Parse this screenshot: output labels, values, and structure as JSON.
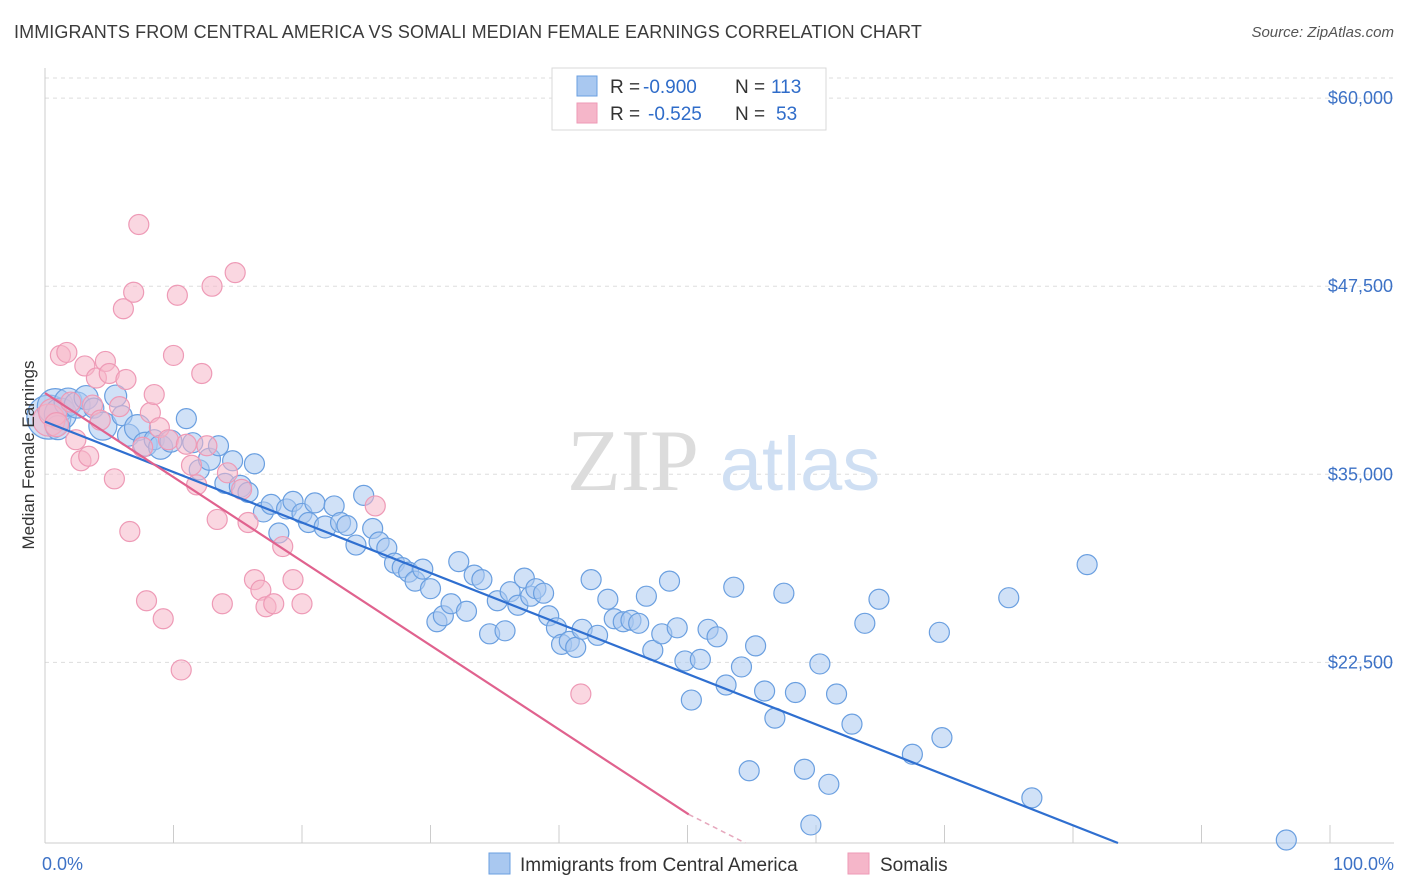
{
  "header": {
    "title": "IMMIGRANTS FROM CENTRAL AMERICA VS SOMALI MEDIAN FEMALE EARNINGS CORRELATION CHART",
    "source": "Source: ZipAtlas.com"
  },
  "watermark": {
    "zip": "ZIP",
    "atlas": "atlas"
  },
  "legend_top": {
    "rows": [
      {
        "r_label": "R =",
        "r_value": "-0.900",
        "n_label": "N =",
        "n_value": "113",
        "color": "#a9c8f0"
      },
      {
        "r_label": "R =",
        "r_value": "-0.525",
        "n_label": "N =",
        "n_value": "53",
        "color": "#f5b6c9"
      }
    ]
  },
  "chart_data": {
    "type": "scatter",
    "title": "IMMIGRANTS FROM CENTRAL AMERICA VS SOMALI MEDIAN FEMALE EARNINGS CORRELATION CHART",
    "ylabel": "Median Female Earnings",
    "xlim": [
      0,
      100
    ],
    "ylim": [
      10500,
      62000
    ],
    "x_tick_labels": {
      "left": "0.0%",
      "right": "100.0%"
    },
    "y_ticks": [
      {
        "value": 22500,
        "label": "$22,500"
      },
      {
        "value": 35000,
        "label": "$35,000"
      },
      {
        "value": 47500,
        "label": "$47,500"
      },
      {
        "value": 60000,
        "label": "$60,000"
      }
    ],
    "grid": true,
    "legend_position": "top-center",
    "series": [
      {
        "name": "Immigrants from Central America",
        "color": "#6a9fe0",
        "fill": "#a9c8f0",
        "line_color": "#2f6fd0",
        "trend": {
          "x0": 0,
          "y0": 38500,
          "x1": 83.5,
          "y1": 10500
        },
        "points": [
          [
            0.3,
            38800,
            22
          ],
          [
            0.8,
            39500,
            18
          ],
          [
            1.2,
            39000,
            16
          ],
          [
            1.8,
            39800,
            14
          ],
          [
            2.5,
            39600,
            13
          ],
          [
            3.2,
            40100,
            12
          ],
          [
            3.8,
            39400,
            10
          ],
          [
            4.5,
            38200,
            14
          ],
          [
            5.5,
            40200,
            11
          ],
          [
            6.0,
            38900,
            10
          ],
          [
            6.5,
            37600,
            11
          ],
          [
            7.2,
            38100,
            13
          ],
          [
            7.8,
            37000,
            12
          ],
          [
            8.5,
            37300,
            10
          ],
          [
            9.0,
            36800,
            12
          ],
          [
            9.8,
            37200,
            11
          ],
          [
            11.0,
            38700,
            10
          ],
          [
            11.5,
            37100,
            10
          ],
          [
            12.0,
            35300,
            10
          ],
          [
            12.8,
            36000,
            11
          ],
          [
            13.5,
            36900,
            10
          ],
          [
            14.0,
            34400,
            10
          ],
          [
            14.6,
            35900,
            10
          ],
          [
            15.2,
            34200,
            11
          ],
          [
            15.8,
            33800,
            10
          ],
          [
            16.3,
            35700,
            10
          ],
          [
            17.0,
            32500,
            10
          ],
          [
            17.6,
            33000,
            10
          ],
          [
            18.2,
            31100,
            10
          ],
          [
            18.8,
            32700,
            10
          ],
          [
            19.3,
            33200,
            10
          ],
          [
            20.0,
            32400,
            10
          ],
          [
            20.5,
            31800,
            10
          ],
          [
            21.0,
            33100,
            10
          ],
          [
            21.8,
            31500,
            11
          ],
          [
            22.5,
            32900,
            10
          ],
          [
            23.0,
            31800,
            10
          ],
          [
            23.5,
            31600,
            10
          ],
          [
            24.2,
            30300,
            10
          ],
          [
            24.8,
            33600,
            10
          ],
          [
            25.5,
            31400,
            10
          ],
          [
            26.0,
            30500,
            10
          ],
          [
            26.6,
            30100,
            10
          ],
          [
            27.2,
            29100,
            10
          ],
          [
            27.8,
            28800,
            10
          ],
          [
            28.3,
            28500,
            10
          ],
          [
            28.8,
            27900,
            10
          ],
          [
            29.4,
            28700,
            10
          ],
          [
            30.0,
            27400,
            10
          ],
          [
            30.5,
            25200,
            10
          ],
          [
            31.0,
            25600,
            10
          ],
          [
            31.6,
            26400,
            10
          ],
          [
            32.2,
            29200,
            10
          ],
          [
            32.8,
            25900,
            10
          ],
          [
            33.4,
            28300,
            10
          ],
          [
            34.0,
            28000,
            10
          ],
          [
            34.6,
            24400,
            10
          ],
          [
            35.2,
            26600,
            10
          ],
          [
            35.8,
            24600,
            10
          ],
          [
            36.2,
            27200,
            10
          ],
          [
            36.8,
            26300,
            10
          ],
          [
            37.3,
            28100,
            10
          ],
          [
            37.8,
            26900,
            10
          ],
          [
            38.2,
            27400,
            10
          ],
          [
            38.8,
            27100,
            10
          ],
          [
            39.2,
            25600,
            10
          ],
          [
            39.8,
            24800,
            10
          ],
          [
            40.2,
            23700,
            10
          ],
          [
            40.8,
            23900,
            10
          ],
          [
            41.3,
            23500,
            10
          ],
          [
            41.8,
            24700,
            10
          ],
          [
            42.5,
            28000,
            10
          ],
          [
            43.0,
            24300,
            10
          ],
          [
            43.8,
            26700,
            10
          ],
          [
            44.3,
            25400,
            10
          ],
          [
            45.0,
            25200,
            10
          ],
          [
            45.6,
            25300,
            10
          ],
          [
            46.2,
            25100,
            10
          ],
          [
            46.8,
            26900,
            10
          ],
          [
            47.3,
            23300,
            10
          ],
          [
            48.0,
            24400,
            10
          ],
          [
            48.6,
            27900,
            10
          ],
          [
            49.2,
            24800,
            10
          ],
          [
            49.8,
            22600,
            10
          ],
          [
            50.3,
            20000,
            10
          ],
          [
            51.0,
            22700,
            10
          ],
          [
            51.6,
            24700,
            10
          ],
          [
            52.3,
            24200,
            10
          ],
          [
            53.0,
            21000,
            10
          ],
          [
            53.6,
            27500,
            10
          ],
          [
            54.2,
            22200,
            10
          ],
          [
            54.8,
            15300,
            10
          ],
          [
            55.3,
            23600,
            10
          ],
          [
            56.0,
            20600,
            10
          ],
          [
            56.8,
            18800,
            10
          ],
          [
            57.5,
            27100,
            10
          ],
          [
            58.4,
            20500,
            10
          ],
          [
            59.1,
            15400,
            10
          ],
          [
            59.6,
            11700,
            10
          ],
          [
            60.3,
            22400,
            10
          ],
          [
            61.0,
            14400,
            10
          ],
          [
            61.6,
            20400,
            10
          ],
          [
            62.8,
            18400,
            10
          ],
          [
            63.8,
            25100,
            10
          ],
          [
            64.9,
            26700,
            10
          ],
          [
            67.5,
            16400,
            10
          ],
          [
            69.6,
            24500,
            10
          ],
          [
            69.8,
            17500,
            10
          ],
          [
            75.0,
            26800,
            10
          ],
          [
            76.8,
            13500,
            10
          ],
          [
            81.1,
            29000,
            10
          ],
          [
            96.6,
            10700,
            10
          ],
          [
            1.0,
            38100,
            12
          ]
        ]
      },
      {
        "name": "Somalis",
        "color": "#ee9ab6",
        "fill": "#f5b6c9",
        "line_color": "#e0628e",
        "trend": {
          "x0": 0,
          "y0": 40400,
          "x1": 50.1,
          "y1": 12400
        },
        "dash": {
          "x0": 50.1,
          "y0": 12400,
          "x1": 54.5,
          "y1": 10500
        },
        "points": [
          [
            0.3,
            38600,
            16
          ],
          [
            0.6,
            39100,
            14
          ],
          [
            0.9,
            38300,
            12
          ],
          [
            1.2,
            42900,
            10
          ],
          [
            1.7,
            43100,
            10
          ],
          [
            2.0,
            39800,
            10
          ],
          [
            2.4,
            37300,
            10
          ],
          [
            2.8,
            35900,
            10
          ],
          [
            3.1,
            42200,
            10
          ],
          [
            3.4,
            36200,
            10
          ],
          [
            3.7,
            39600,
            10
          ],
          [
            4.0,
            41400,
            10
          ],
          [
            4.3,
            38600,
            10
          ],
          [
            4.7,
            42500,
            10
          ],
          [
            5.0,
            41700,
            10
          ],
          [
            5.4,
            34700,
            10
          ],
          [
            5.8,
            39500,
            10
          ],
          [
            6.1,
            46000,
            10
          ],
          [
            6.3,
            41300,
            10
          ],
          [
            6.6,
            31200,
            10
          ],
          [
            6.9,
            47100,
            10
          ],
          [
            7.3,
            51600,
            10
          ],
          [
            7.6,
            36800,
            10
          ],
          [
            7.9,
            26600,
            10
          ],
          [
            8.2,
            39100,
            10
          ],
          [
            8.5,
            40300,
            10
          ],
          [
            8.9,
            38100,
            10
          ],
          [
            9.2,
            25400,
            10
          ],
          [
            9.6,
            37300,
            10
          ],
          [
            10.0,
            42900,
            10
          ],
          [
            10.3,
            46900,
            10
          ],
          [
            10.6,
            22000,
            10
          ],
          [
            11.0,
            37000,
            10
          ],
          [
            11.4,
            35600,
            10
          ],
          [
            11.8,
            34300,
            10
          ],
          [
            12.2,
            41700,
            10
          ],
          [
            12.6,
            36900,
            10
          ],
          [
            13.0,
            47500,
            10
          ],
          [
            13.4,
            32000,
            10
          ],
          [
            13.8,
            26400,
            10
          ],
          [
            14.2,
            35100,
            10
          ],
          [
            14.8,
            48400,
            10
          ],
          [
            15.3,
            34000,
            10
          ],
          [
            15.8,
            31800,
            10
          ],
          [
            16.3,
            28000,
            10
          ],
          [
            16.8,
            27300,
            10
          ],
          [
            17.2,
            26200,
            10
          ],
          [
            17.8,
            26400,
            10
          ],
          [
            18.5,
            30200,
            10
          ],
          [
            19.3,
            28000,
            10
          ],
          [
            20.0,
            26400,
            10
          ],
          [
            25.7,
            32900,
            10
          ],
          [
            41.7,
            20400,
            10
          ]
        ]
      }
    ]
  },
  "legend_bottom": {
    "items": [
      {
        "label": "Immigrants from Central America",
        "color": "#a9c8f0"
      },
      {
        "label": "Somalis",
        "color": "#f5b6c9"
      }
    ]
  }
}
